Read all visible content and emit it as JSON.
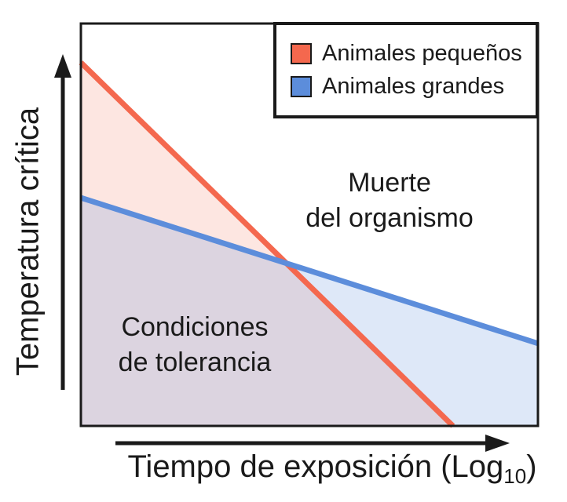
{
  "chart_data": {
    "type": "line",
    "title": "",
    "xlabel": "Tiempo de exposición (Log10)",
    "xlabel_parts": {
      "main": "Tiempo de exposición (Log",
      "sub": "10",
      "tail": ")"
    },
    "ylabel": "Temperatura crítica",
    "axes": {
      "style": "conceptual arrow axes, no numeric ticks",
      "grid": false,
      "x_range_frac": [
        0,
        1
      ],
      "y_range_frac": [
        0,
        1
      ]
    },
    "legend": {
      "position": "upper right",
      "entries": [
        "Animales pequeños",
        "Animales grandes"
      ]
    },
    "series": [
      {
        "name": "Animales pequeños",
        "color": "#F4684E",
        "fill": "rgba(244,104,78,0.17)",
        "x_frac": [
          0,
          0.814
        ],
        "y_frac": [
          0.903,
          0
        ],
        "area": "below line"
      },
      {
        "name": "Animales grandes",
        "color": "#5C8DDB",
        "fill": "rgba(92,141,219,0.20)",
        "x_frac": [
          0,
          1
        ],
        "y_frac": [
          0.567,
          0.205
        ],
        "area": "below line"
      }
    ],
    "annotations": [
      {
        "lines": [
          "Muerte",
          "del organismo"
        ],
        "region": "above both lines"
      },
      {
        "lines": [
          "Condiciones",
          "de tolerancia"
        ],
        "region": "below both lines"
      }
    ],
    "colors": {
      "axis": "#1a1a1a",
      "background": "#ffffff"
    }
  }
}
